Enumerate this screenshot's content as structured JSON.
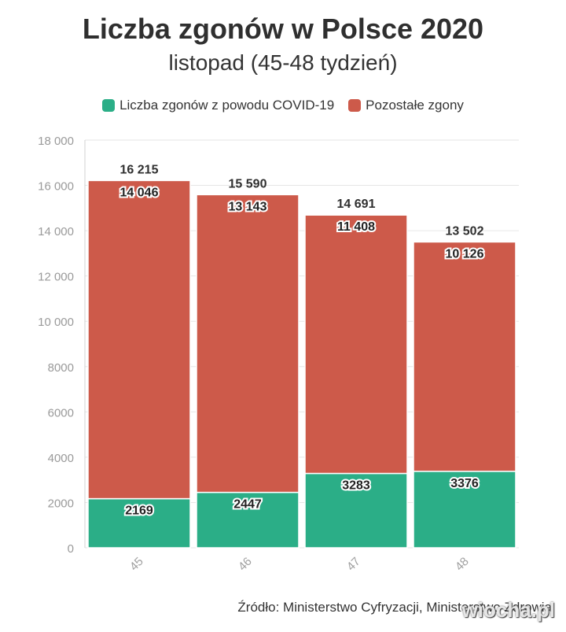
{
  "title": "Liczba zgonów w Polsce 2020",
  "subtitle": "listopad (45-48 tydzień)",
  "legend": [
    {
      "label": "Liczba zgonów z powodu COVID-19",
      "color": "#2bae87"
    },
    {
      "label": "Pozostałe zgony",
      "color": "#cd5a4a"
    }
  ],
  "source": "Źródło: Ministerstwo Cyfryzacji, Ministerstwo Zdrowia",
  "watermark": "wiocha.pl",
  "chart_data": {
    "type": "bar",
    "stacked": true,
    "categories": [
      "45",
      "46",
      "47",
      "48"
    ],
    "series": [
      {
        "name": "Liczba zgonów z powodu COVID-19",
        "values": [
          2169,
          2447,
          3283,
          3376
        ],
        "labels": [
          "2169",
          "2447",
          "3283",
          "3376"
        ],
        "color": "#2bae87"
      },
      {
        "name": "Pozostałe zgony",
        "values": [
          14046,
          13143,
          11408,
          10126
        ],
        "labels": [
          "14 046",
          "13 143",
          "11 408",
          "10 126"
        ],
        "color": "#cd5a4a"
      }
    ],
    "totals": [
      16215,
      15590,
      14691,
      13502
    ],
    "total_labels": [
      "16 215",
      "15 590",
      "14 691",
      "13 502"
    ],
    "ylim": [
      0,
      18000
    ],
    "yticks": [
      0,
      2000,
      4000,
      6000,
      8000,
      10000,
      12000,
      14000,
      16000,
      18000
    ],
    "ytick_labels": [
      "0",
      "2000",
      "4000",
      "6000",
      "8000",
      "10 000",
      "12 000",
      "14 000",
      "16 000",
      "18 000"
    ],
    "grid": true,
    "legend_position": "top"
  }
}
